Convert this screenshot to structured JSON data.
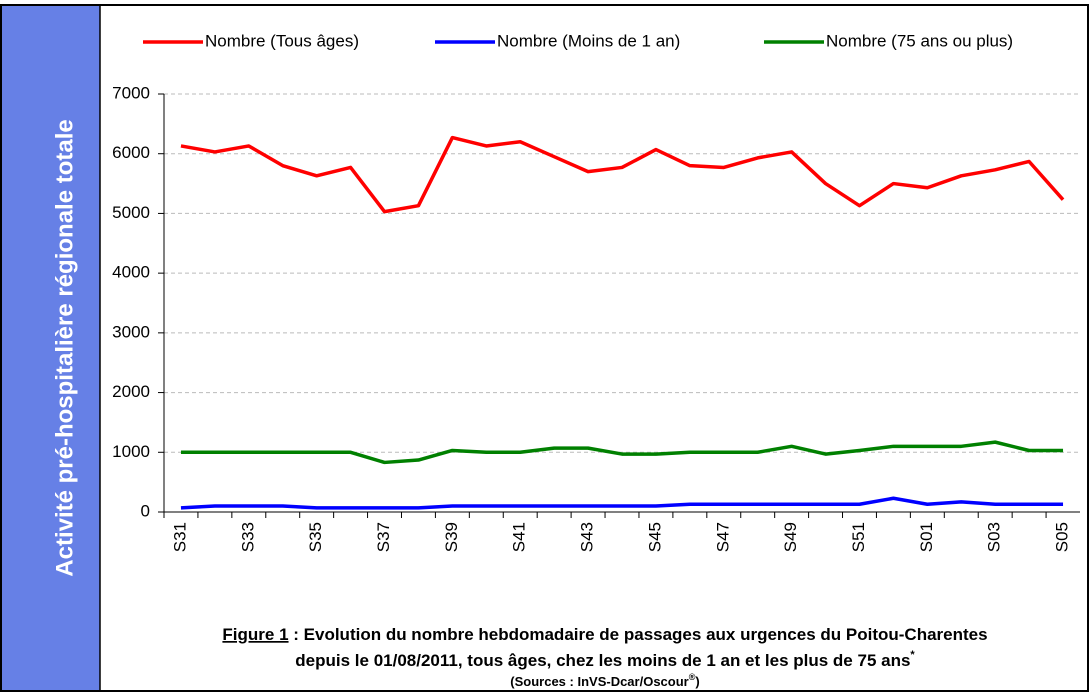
{
  "sidebar": {
    "title": "Activité pré-hospitalière régionale totale"
  },
  "chart_data": {
    "type": "line",
    "categories": [
      "S31",
      null,
      "S33",
      null,
      "S35",
      null,
      "S37",
      null,
      "S39",
      null,
      "S41",
      null,
      "S43",
      null,
      "S45",
      null,
      "S47",
      null,
      "S49",
      null,
      "S51",
      null,
      "S01",
      null,
      "S03",
      null,
      "S05"
    ],
    "series": [
      {
        "name": "Nombre (Tous âges)",
        "color": "#ff0000",
        "values": [
          6130,
          6030,
          6130,
          5800,
          5630,
          5770,
          5030,
          5130,
          6270,
          6130,
          6200,
          5950,
          5700,
          5770,
          6070,
          5800,
          5770,
          5930,
          6030,
          5500,
          5130,
          5500,
          5430,
          5630,
          5730,
          5870,
          5230
        ]
      },
      {
        "name": "Nombre (Moins de 1 an)",
        "color": "#0000ff",
        "values": [
          70,
          100,
          100,
          100,
          70,
          70,
          70,
          70,
          100,
          100,
          100,
          100,
          100,
          100,
          100,
          130,
          130,
          130,
          130,
          130,
          130,
          230,
          130,
          170,
          130,
          130,
          130
        ]
      },
      {
        "name": "Nombre (75 ans ou plus)",
        "color": "#008000",
        "values": [
          1000,
          1000,
          1000,
          1000,
          1000,
          1000,
          830,
          870,
          1030,
          1000,
          1000,
          1070,
          1070,
          970,
          970,
          1000,
          1000,
          1000,
          1100,
          970,
          1030,
          1100,
          1100,
          1100,
          1170,
          1030,
          1030
        ]
      }
    ],
    "ylim": [
      0,
      7000
    ],
    "yticks": [
      0,
      1000,
      2000,
      3000,
      4000,
      5000,
      6000,
      7000
    ],
    "grid": true,
    "legend": "top"
  },
  "caption": {
    "label": "Figure 1",
    "line1": " : Evolution du nombre hebdomadaire de passages aux urgences du Poitou-Charentes",
    "line2": "depuis le 01/08/2011, tous âges, chez les moins de 1 an et les plus de 75 ans",
    "line2_mark": "*",
    "sources": "(Sources : InVS-Dcar/Oscour",
    "sources_mark": "®",
    "sources_close": ")"
  }
}
